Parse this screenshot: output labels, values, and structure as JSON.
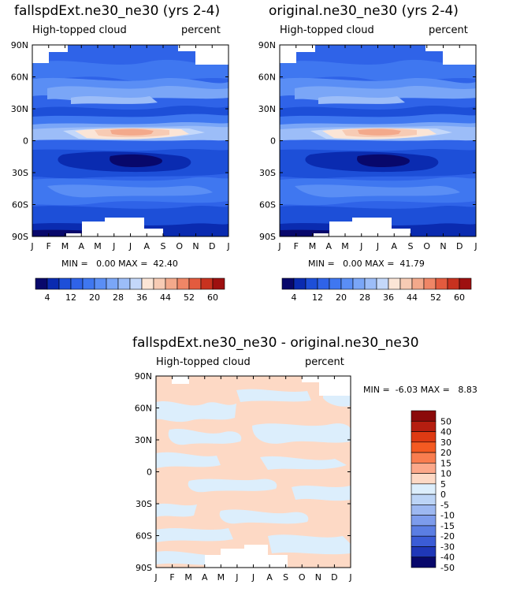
{
  "panels": [
    {
      "title": "fallspdExt.ne30_ne30 (yrs 2-4)",
      "left_label": "High-topped cloud",
      "right_label": "percent",
      "stats": "MIN =   0.00 MAX =  42.40"
    },
    {
      "title": "original.ne30_ne30 (yrs 2-4)",
      "left_label": "High-topped cloud",
      "right_label": "percent",
      "stats": "MIN =   0.00 MAX =  41.79"
    }
  ],
  "diff_panel": {
    "title": "fallspdExt.ne30_ne30 - original.ne30_ne30",
    "left_label": "High-topped cloud",
    "right_label": "percent",
    "stats": "MIN =  -6.03 MAX =   8.83"
  },
  "chart_data": [
    {
      "type": "heatmap",
      "title": "fallspdExt.ne30_ne30 (yrs 2-4)",
      "subtitle_left": "High-topped cloud",
      "subtitle_right": "percent",
      "x_ticks": [
        "J",
        "F",
        "M",
        "A",
        "M",
        "J",
        "J",
        "A",
        "S",
        "O",
        "N",
        "D",
        "J"
      ],
      "y_ticks": [
        "90N",
        "60N",
        "30N",
        "0",
        "30S",
        "60S",
        "90S"
      ],
      "min": 0.0,
      "max": 42.4,
      "colorbar_labels": [
        "4",
        "12",
        "20",
        "28",
        "36",
        "44",
        "52",
        "60"
      ],
      "colorbar_levels": [
        0,
        4,
        8,
        12,
        16,
        20,
        24,
        28,
        32,
        36,
        40,
        44,
        48,
        52,
        56,
        60,
        64
      ]
    },
    {
      "type": "heatmap",
      "title": "original.ne30_ne30 (yrs 2-4)",
      "subtitle_left": "High-topped cloud",
      "subtitle_right": "percent",
      "x_ticks": [
        "J",
        "F",
        "M",
        "A",
        "M",
        "J",
        "J",
        "A",
        "S",
        "O",
        "N",
        "D",
        "J"
      ],
      "y_ticks": [
        "90N",
        "60N",
        "30N",
        "0",
        "30S",
        "60S",
        "90S"
      ],
      "min": 0.0,
      "max": 41.79,
      "colorbar_labels": [
        "4",
        "12",
        "20",
        "28",
        "36",
        "44",
        "52",
        "60"
      ],
      "colorbar_levels": [
        0,
        4,
        8,
        12,
        16,
        20,
        24,
        28,
        32,
        36,
        40,
        44,
        48,
        52,
        56,
        60,
        64
      ]
    },
    {
      "type": "heatmap",
      "title": "fallspdExt.ne30_ne30 - original.ne30_ne30",
      "subtitle_left": "High-topped cloud",
      "subtitle_right": "percent",
      "x_ticks": [
        "J",
        "F",
        "M",
        "A",
        "M",
        "J",
        "J",
        "A",
        "S",
        "O",
        "N",
        "D",
        "J"
      ],
      "y_ticks": [
        "90N",
        "60N",
        "30N",
        "0",
        "30S",
        "60S",
        "90S"
      ],
      "min": -6.03,
      "max": 8.83,
      "colorbar_labels": [
        "50",
        "40",
        "30",
        "20",
        "15",
        "10",
        "5",
        "0",
        "-5",
        "-10",
        "-15",
        "-20",
        "-30",
        "-40",
        "-50"
      ]
    }
  ],
  "colors": {
    "seq": [
      "#08086b",
      "#0a2bb0",
      "#1d4fd8",
      "#2f63e8",
      "#3f77f0",
      "#5a8ef5",
      "#7aa6f7",
      "#9cbdf8",
      "#c4d8fa",
      "#fbe5d6",
      "#f7cbb4",
      "#f3a98b",
      "#ef8666",
      "#e35b3e",
      "#c8321f",
      "#9e1010"
    ],
    "diff": [
      "#8b0a0a",
      "#b51e10",
      "#de3a13",
      "#f45a22",
      "#f97d4f",
      "#fca88a",
      "#fdd9c5",
      "#dceefc",
      "#bcd4f6",
      "#9db8f1",
      "#7d9cec",
      "#5b7ee3",
      "#3b5cd6",
      "#1f37b8",
      "#08086b"
    ]
  }
}
